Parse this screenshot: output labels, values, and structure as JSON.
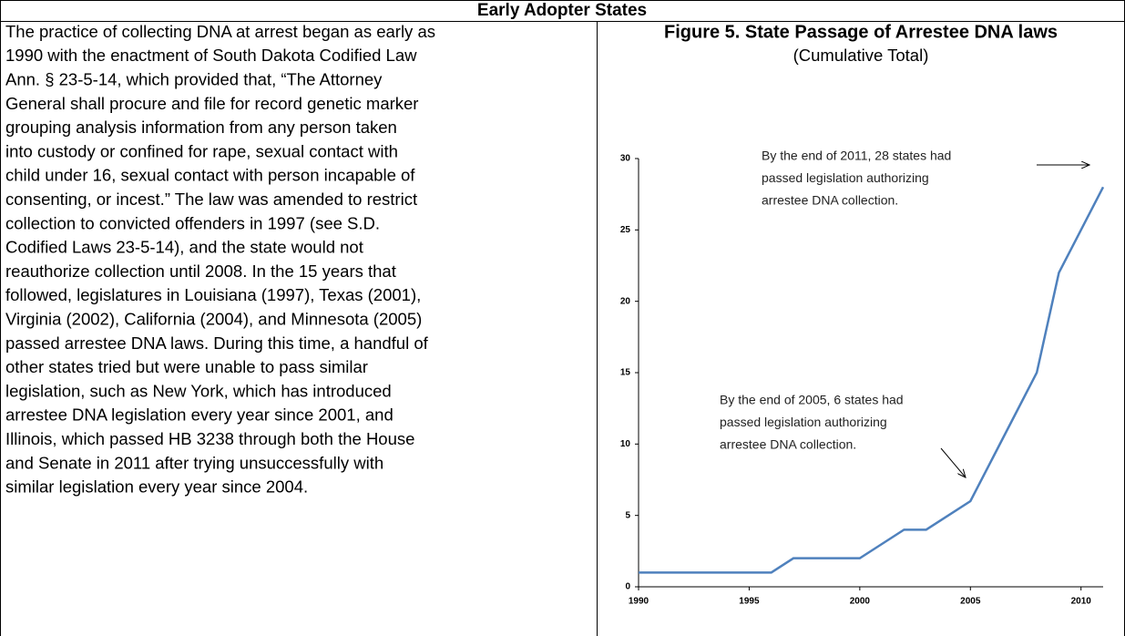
{
  "header": {
    "title": "Early Adopter States"
  },
  "body": {
    "lines": [
      "The practice of collecting DNA at arrest began as early as",
      "1990 with the enactment of South Dakota Codified Law",
      "Ann. § 23-5-14, which provided that, “The Attorney",
      "General shall procure and file for record genetic marker",
      "grouping analysis information from any person taken",
      "into custody or confined for rape, sexual contact with",
      "child under 16, sexual contact with person incapable of",
      "consenting, or incest.” The law was amended to restrict",
      "collection to convicted offenders in 1997 (see S.D.",
      "Codified Laws 23-5-14), and the state would not",
      "reauthorize collection until 2008. In the 15 years that",
      "followed, legislatures in Louisiana (1997), Texas (2001),",
      "Virginia (2002), California (2004), and Minnesota (2005)",
      "passed arrestee DNA laws. During this time, a handful of",
      "other states tried but were unable to pass similar",
      "legislation, such as New York, which has introduced",
      "arrestee DNA legislation every year since 2001, and",
      "Illinois, which passed HB 3238 through both the House",
      "and Senate in 2011 after trying unsuccessfully with",
      "similar legislation every year since 2004."
    ]
  },
  "chart_data": {
    "type": "line",
    "title": "Figure 5. State Passage of Arrestee DNA laws",
    "subtitle": "(Cumulative Total)",
    "x": [
      1990,
      1991,
      1992,
      1993,
      1994,
      1995,
      1996,
      1997,
      1998,
      1999,
      2000,
      2001,
      2002,
      2003,
      2004,
      2005,
      2006,
      2007,
      2008,
      2009,
      2010,
      2011
    ],
    "values": [
      1,
      1,
      1,
      1,
      1,
      1,
      1,
      2,
      2,
      2,
      2,
      3,
      4,
      4,
      5,
      6,
      9,
      12,
      15,
      22,
      25,
      28
    ],
    "color": "#4f81bd",
    "xlim": [
      1990,
      2011
    ],
    "xticks": [
      1990,
      1995,
      2000,
      2005,
      2010
    ],
    "ylim": [
      0,
      30
    ],
    "yticks": [
      0,
      5,
      10,
      15,
      20,
      25,
      30
    ],
    "annotations": [
      [
        "By the end of 2011, 28 states had",
        "passed legislation authorizing",
        "arrestee DNA collection."
      ],
      [
        "By the end of 2005, 6 states had",
        "passed legislation authorizing",
        "arrestee DNA collection."
      ]
    ]
  }
}
